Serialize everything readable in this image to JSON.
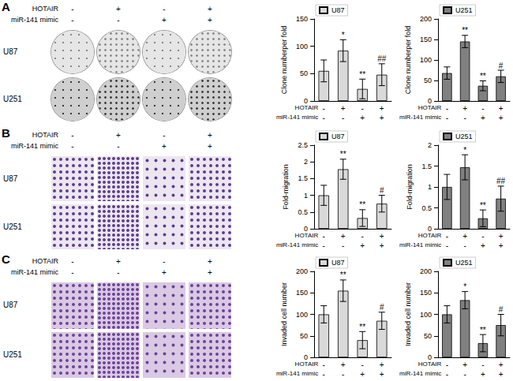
{
  "chart_data": [
    {
      "type": "bar",
      "y_label": "Clone numberper fold",
      "categories": [
        null,
        null,
        null,
        null
      ],
      "series": [
        {
          "name": "U87",
          "color": "#d9d9d9",
          "values": [
            55,
            92,
            22,
            48
          ],
          "errors": [
            20,
            20,
            18,
            20
          ]
        }
      ],
      "significance": [
        null,
        "*",
        "**",
        "##"
      ],
      "conditions": [
        {
          "label": "HOTAIR",
          "values": [
            "-",
            "+",
            "-",
            "+"
          ]
        },
        {
          "label": "miR-141 mimic",
          "values": [
            "-",
            "-",
            "+",
            "+"
          ]
        }
      ],
      "ylim": [
        0,
        150
      ],
      "yticks": [
        0,
        50,
        100,
        150
      ],
      "grid": false,
      "legend": "top-left"
    },
    {
      "type": "bar",
      "y_label": "Clone numberper fold",
      "categories": [
        null,
        null,
        null,
        null
      ],
      "series": [
        {
          "name": "U251",
          "color": "#808080",
          "values": [
            68,
            145,
            37,
            60
          ],
          "errors": [
            15,
            15,
            12,
            15
          ]
        }
      ],
      "significance": [
        null,
        "**",
        "**",
        "#"
      ],
      "conditions": [
        {
          "label": "HOTAIR",
          "values": [
            "-",
            "+",
            "-",
            "+"
          ]
        },
        {
          "label": "miR-141 mimic",
          "values": [
            "-",
            "-",
            "+",
            "+"
          ]
        }
      ],
      "ylim": [
        0,
        200
      ],
      "yticks": [
        0,
        50,
        100,
        150,
        200
      ],
      "grid": false,
      "legend": "top-left"
    },
    {
      "type": "bar",
      "y_label": "Fold-migration",
      "categories": [
        null,
        null,
        null,
        null
      ],
      "series": [
        {
          "name": "U87",
          "color": "#d9d9d9",
          "values": [
            1.0,
            1.78,
            0.32,
            0.75
          ],
          "errors": [
            0.3,
            0.3,
            0.25,
            0.25
          ]
        }
      ],
      "significance": [
        null,
        "**",
        "**",
        "#"
      ],
      "conditions": [
        {
          "label": "HOTAIR",
          "values": [
            "-",
            "+",
            "-",
            "+"
          ]
        },
        {
          "label": "miR-141 mimic",
          "values": [
            "-",
            "-",
            "+",
            "+"
          ]
        }
      ],
      "ylim": [
        0,
        2.5
      ],
      "yticks": [
        0,
        0.5,
        1,
        1.5,
        2,
        2.5
      ],
      "grid": false,
      "legend": "top-left"
    },
    {
      "type": "bar",
      "y_label": "Fold-migration",
      "categories": [
        null,
        null,
        null,
        null
      ],
      "series": [
        {
          "name": "U251",
          "color": "#808080",
          "values": [
            1.0,
            1.47,
            0.25,
            0.72
          ],
          "errors": [
            0.3,
            0.3,
            0.2,
            0.3
          ]
        }
      ],
      "significance": [
        null,
        "*",
        "**",
        "##"
      ],
      "conditions": [
        {
          "label": "HOTAIR",
          "values": [
            "-",
            "+",
            "-",
            "+"
          ]
        },
        {
          "label": "miR-141 mimic",
          "values": [
            "-",
            "-",
            "+",
            "+"
          ]
        }
      ],
      "ylim": [
        0,
        2
      ],
      "yticks": [
        0,
        0.5,
        1,
        1.5,
        2
      ],
      "grid": false,
      "legend": "top-left"
    },
    {
      "type": "bar",
      "y_label": "Invaded cell number",
      "categories": [
        null,
        null,
        null,
        null
      ],
      "series": [
        {
          "name": "U87",
          "color": "#d9d9d9",
          "values": [
            100,
            155,
            40,
            85
          ],
          "errors": [
            20,
            25,
            20,
            20
          ]
        }
      ],
      "significance": [
        null,
        "**",
        "**",
        "#"
      ],
      "conditions": [
        {
          "label": "HOTAIR",
          "values": [
            "-",
            "+",
            "-",
            "+"
          ]
        },
        {
          "label": "miR-141 mimic",
          "values": [
            "-",
            "-",
            "+",
            "+"
          ]
        }
      ],
      "ylim": [
        0,
        200
      ],
      "yticks": [
        0,
        50,
        100,
        150,
        200
      ],
      "grid": false,
      "legend": "top-left"
    },
    {
      "type": "bar",
      "y_label": "Invaded cell number",
      "categories": [
        null,
        null,
        null,
        null
      ],
      "series": [
        {
          "name": "U251",
          "color": "#808080",
          "values": [
            100,
            133,
            33,
            75
          ],
          "errors": [
            20,
            20,
            20,
            25
          ]
        }
      ],
      "significance": [
        null,
        "*",
        "**",
        "#"
      ],
      "conditions": [
        {
          "label": "HOTAIR",
          "values": [
            "-",
            "+",
            "-",
            "+"
          ]
        },
        {
          "label": "miR-141 mimic",
          "values": [
            "-",
            "-",
            "+",
            "+"
          ]
        }
      ],
      "ylim": [
        0,
        200
      ],
      "yticks": [
        0,
        50,
        100,
        150,
        200
      ],
      "grid": false,
      "legend": "top-left"
    }
  ],
  "figure": {
    "panels": [
      {
        "letter": "A",
        "conditions": [
          {
            "label": "HOTAIR",
            "values": [
              "-",
              "+",
              "-",
              "+"
            ]
          },
          {
            "label": "miR-141 mimic",
            "values": [
              "-",
              "-",
              "+",
              "+"
            ]
          }
        ],
        "rows": [
          "U87",
          "U251"
        ]
      },
      {
        "letter": "B",
        "conditions": [
          {
            "label": "HOTAIR",
            "values": [
              "-",
              "+",
              "-",
              "+"
            ]
          },
          {
            "label": "miR-141 mimic",
            "values": [
              "-",
              "-",
              "+",
              "+"
            ]
          }
        ],
        "rows": [
          "U87",
          "U251"
        ]
      },
      {
        "letter": "C",
        "conditions": [
          {
            "label": "HOTAIR",
            "values": [
              "-",
              "+",
              "-",
              "+"
            ]
          },
          {
            "label": "miR-141 mimic",
            "values": [
              "-",
              "-",
              "+",
              "+"
            ]
          }
        ],
        "rows": [
          "U87",
          "U251"
        ]
      }
    ]
  }
}
